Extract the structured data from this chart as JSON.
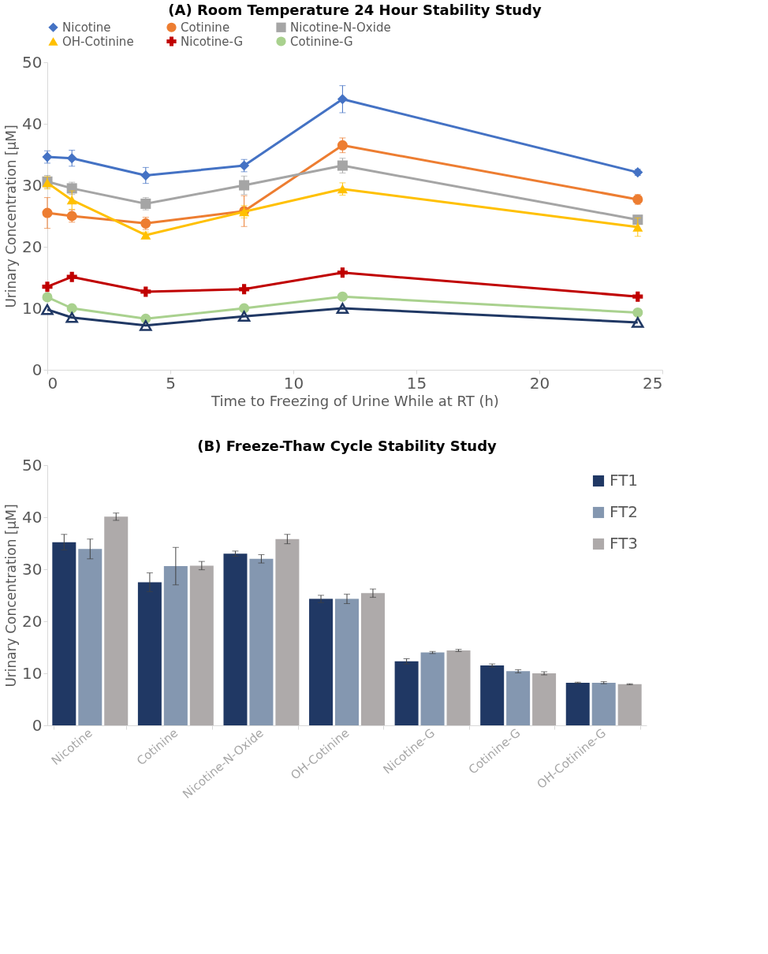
{
  "chart_data": [
    {
      "type": "line",
      "title": "(A) Room Temperature 24 Hour Stability Study",
      "xlabel": "Time to Freezing of Urine While at RT (h)",
      "ylabel": "Urinary Concentration [μM]",
      "x": [
        0,
        1,
        4,
        8,
        12,
        24
      ],
      "xlim": [
        0,
        25
      ],
      "xticks": [
        0,
        5,
        10,
        15,
        20,
        25
      ],
      "ylim": [
        0,
        50
      ],
      "yticks": [
        0,
        10,
        20,
        30,
        40,
        50
      ],
      "grid": false,
      "legend": "top",
      "series": [
        {
          "name": "Nicotine",
          "color": "#4472c4",
          "marker": "diamond",
          "values": [
            34.6,
            34.4,
            31.6,
            33.2,
            44.0,
            32.1
          ],
          "errors": [
            1.0,
            1.3,
            1.3,
            1.0,
            2.2,
            0.5
          ]
        },
        {
          "name": "Cotinine",
          "color": "#ed7d31",
          "marker": "circle",
          "values": [
            25.5,
            25.0,
            23.8,
            25.8,
            36.5,
            27.7
          ],
          "errors": [
            2.5,
            1.0,
            1.0,
            2.5,
            1.2,
            0.8
          ]
        },
        {
          "name": "Nicotine-N-Oxide",
          "color": "#a5a5a5",
          "marker": "square",
          "values": [
            30.6,
            29.5,
            27.0,
            30.0,
            33.2,
            24.4
          ],
          "errors": [
            1.0,
            1.0,
            1.0,
            1.5,
            1.2,
            0.5
          ]
        },
        {
          "name": "OH-Cotinine",
          "color": "#ffc000",
          "marker": "triangle",
          "values": [
            30.4,
            27.6,
            21.9,
            25.7,
            29.4,
            23.2
          ],
          "errors": [
            1.0,
            1.5,
            0.5,
            1.0,
            1.0,
            1.5
          ]
        },
        {
          "name": "Nicotine-G",
          "color": "#c00000",
          "marker": "cross",
          "values": [
            13.5,
            15.1,
            12.7,
            13.1,
            15.8,
            11.9
          ]
        },
        {
          "name": "Cotinine-G",
          "color": "#a9d18e",
          "marker": "circle",
          "values": [
            11.8,
            10.0,
            8.3,
            10.0,
            11.9,
            9.3
          ]
        },
        {
          "color": "#203864",
          "marker": "triangle",
          "values": [
            9.8,
            8.5,
            7.2,
            8.7,
            10.0,
            7.7
          ]
        }
      ]
    },
    {
      "type": "bar",
      "title": "(B) Freeze-Thaw Cycle Stability Study",
      "ylabel": "Urinary Concentration [μM]",
      "categories": [
        "Nicotine",
        "Cotinine",
        "Nicotine-N-Oxide",
        "OH-Cotinine",
        "Nicotine-G",
        "Cotinine-G",
        "OH-Cotinine-G"
      ],
      "ylim": [
        0,
        50
      ],
      "yticks": [
        0,
        10,
        20,
        30,
        40,
        50
      ],
      "grid": false,
      "legend": "top right",
      "series": [
        {
          "name": "FT1",
          "color": "#203864",
          "values": [
            35.2,
            27.5,
            33.0,
            24.3,
            12.3,
            11.5,
            8.2
          ],
          "errors": [
            1.5,
            1.8,
            0.5,
            0.7,
            0.5,
            0.3,
            0.1
          ]
        },
        {
          "name": "FT2",
          "color": "#8497b0",
          "values": [
            33.9,
            30.6,
            32.0,
            24.3,
            14.0,
            10.4,
            8.2
          ],
          "errors": [
            1.9,
            3.6,
            0.8,
            0.9,
            0.2,
            0.3,
            0.2
          ]
        },
        {
          "name": "FT3",
          "color": "#aeaaaa",
          "values": [
            40.1,
            30.7,
            35.8,
            25.4,
            14.4,
            10.0,
            7.9
          ],
          "errors": [
            0.7,
            0.8,
            0.9,
            0.8,
            0.2,
            0.3,
            0.1
          ]
        }
      ]
    }
  ]
}
